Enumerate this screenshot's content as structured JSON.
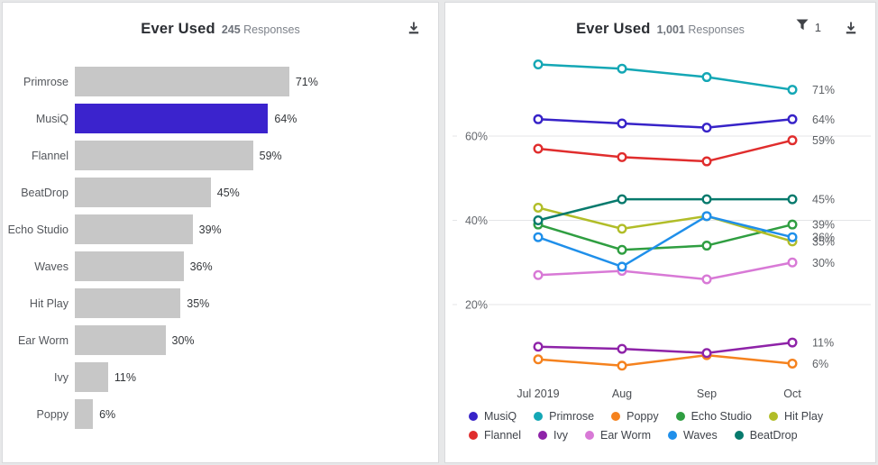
{
  "chart_data": [
    {
      "type": "bar",
      "title": "Ever Used",
      "subtitle_count": "245",
      "subtitle_word": "Responses",
      "orientation": "horizontal",
      "categories": [
        "Primrose",
        "MusiQ",
        "Flannel",
        "BeatDrop",
        "Echo Studio",
        "Waves",
        "Hit Play",
        "Ear Worm",
        "Ivy",
        "Poppy"
      ],
      "values": [
        71,
        64,
        59,
        45,
        39,
        36,
        35,
        30,
        11,
        6
      ],
      "value_labels": [
        "71%",
        "64%",
        "59%",
        "45%",
        "39%",
        "36%",
        "35%",
        "30%",
        "11%",
        "6%"
      ],
      "bar_color": "#c7c7c7",
      "highlight_index": 1,
      "highlight_color": "#3b23cd",
      "xlim": [
        0,
        100
      ],
      "grid": false
    },
    {
      "type": "line",
      "title": "Ever Used",
      "subtitle_count": "1,001",
      "subtitle_word": "Responses",
      "filter_count": "1",
      "x": [
        "Jul 2019",
        "Aug",
        "Sep",
        "Oct"
      ],
      "y_ticks": [
        {
          "label": "60%",
          "value": 60
        },
        {
          "label": "40%",
          "value": 40
        },
        {
          "label": "20%",
          "value": 20
        }
      ],
      "ylim": [
        0,
        85
      ],
      "grid": "horizontal",
      "legend_position": "bottom",
      "series": [
        {
          "name": "MusiQ",
          "color": "#3723c8",
          "values": [
            64,
            63,
            62,
            64
          ],
          "end_label": "64%"
        },
        {
          "name": "Primrose",
          "color": "#14a7b5",
          "values": [
            77,
            76,
            74,
            71
          ],
          "end_label": "71%"
        },
        {
          "name": "Poppy",
          "color": "#f5821e",
          "values": [
            7,
            5.5,
            8,
            6
          ],
          "end_label": "6%"
        },
        {
          "name": "Echo Studio",
          "color": "#2f9e41",
          "values": [
            39,
            33,
            34,
            39
          ],
          "end_label": "39%"
        },
        {
          "name": "Hit Play",
          "color": "#b1bd28",
          "values": [
            43,
            38,
            41,
            35
          ],
          "end_label": "35%"
        },
        {
          "name": "Flannel",
          "color": "#e02d2d",
          "values": [
            57,
            55,
            54,
            59
          ],
          "end_label": "59%"
        },
        {
          "name": "Ivy",
          "color": "#8e23a8",
          "values": [
            10,
            9.5,
            8.5,
            11
          ],
          "end_label": "11%"
        },
        {
          "name": "Ear Worm",
          "color": "#d879d6",
          "values": [
            27,
            28,
            26,
            30
          ],
          "end_label": "30%"
        },
        {
          "name": "Waves",
          "color": "#1f8fea",
          "values": [
            36,
            29,
            41,
            36
          ],
          "end_label": "36%"
        },
        {
          "name": "BeatDrop",
          "color": "#077a6d",
          "values": [
            40,
            45,
            45,
            45
          ],
          "end_label": "45%"
        }
      ],
      "legend_rows": [
        [
          "MusiQ",
          "Primrose",
          "Poppy",
          "Echo Studio",
          "Hit Play"
        ],
        [
          "Flannel",
          "Ivy",
          "Ear Worm",
          "Waves",
          "BeatDrop"
        ]
      ]
    }
  ]
}
